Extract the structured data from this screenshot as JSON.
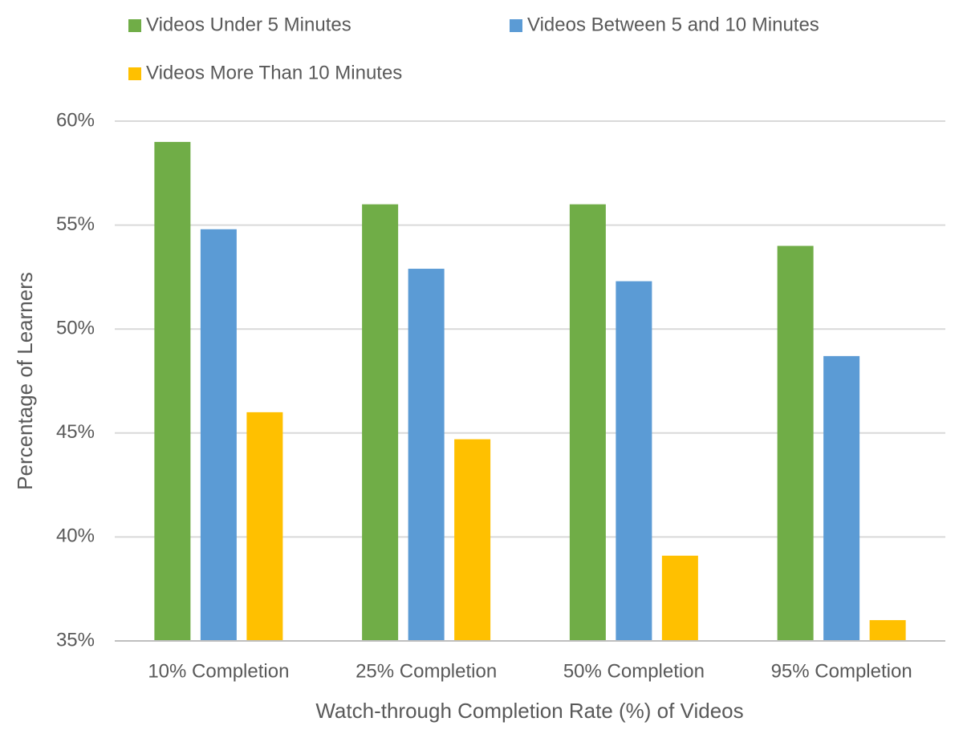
{
  "chart_data": {
    "type": "bar",
    "xlabel": "Watch-through Completion Rate (%) of Videos",
    "ylabel": "Percentage of Learners",
    "categories": [
      "10% Completion",
      "25% Completion",
      "50% Completion",
      "95% Completion"
    ],
    "series": [
      {
        "name": "Videos Under 5 Minutes",
        "color": "#70ad47",
        "values": [
          59.0,
          56.0,
          56.0,
          54.0
        ]
      },
      {
        "name": "Videos Between 5 and 10 Minutes",
        "color": "#5b9bd5",
        "values": [
          54.8,
          52.9,
          52.3,
          48.7
        ]
      },
      {
        "name": "Videos More Than 10 Minutes",
        "color": "#ffc000",
        "values": [
          46.0,
          44.7,
          39.1,
          36.0
        ]
      }
    ],
    "ylim": [
      35,
      60
    ],
    "yticks": [
      {
        "value": 35,
        "label": "35%"
      },
      {
        "value": 40,
        "label": "40%"
      },
      {
        "value": 45,
        "label": "45%"
      },
      {
        "value": 50,
        "label": "50%"
      },
      {
        "value": 55,
        "label": "55%"
      },
      {
        "value": 60,
        "label": "60%"
      }
    ],
    "grid": true,
    "legend": "top"
  }
}
